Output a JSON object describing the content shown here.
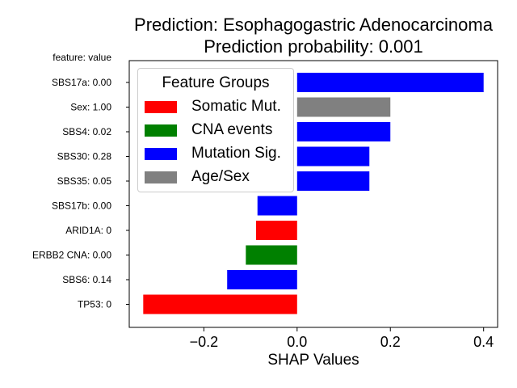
{
  "chart_data": {
    "type": "bar",
    "orientation": "horizontal",
    "title": "Prediction: Esophagogastric Adenocarcinoma",
    "subtitle": "Prediction probability: 0.001",
    "feature_header": "feature: value",
    "xlabel": "SHAP Values",
    "ylabel": "",
    "xlim": [
      -0.36,
      0.43
    ],
    "xticks": [
      -0.2,
      0.0,
      0.2,
      0.4
    ],
    "xtick_labels": [
      "−0.2",
      "0.0",
      "0.2",
      "0.4"
    ],
    "grid": false,
    "legend_placement": "upper-left",
    "categories": [
      "SBS17a: 0.00",
      "Sex: 1.00",
      "SBS4: 0.02",
      "SBS30: 0.28",
      "SBS35: 0.05",
      "SBS17b: 0.00",
      "ARID1A: 0",
      "ERBB2 CNA: 0.00",
      "SBS6: 0.14",
      "TP53: 0"
    ],
    "values": [
      0.4,
      0.2,
      0.2,
      0.155,
      0.155,
      -0.085,
      -0.088,
      -0.11,
      -0.15,
      -0.33
    ],
    "groups": [
      "Mutation Sig.",
      "Age/Sex",
      "Mutation Sig.",
      "Mutation Sig.",
      "Mutation Sig.",
      "Mutation Sig.",
      "Somatic Mut.",
      "CNA events",
      "Mutation Sig.",
      "Somatic Mut."
    ],
    "legend": {
      "title": "Feature Groups",
      "entries": [
        {
          "name": "Somatic Mut.",
          "color": "#ff0000"
        },
        {
          "name": "CNA events",
          "color": "#008000"
        },
        {
          "name": "Mutation Sig.",
          "color": "#0000ff"
        },
        {
          "name": "Age/Sex",
          "color": "#808080"
        }
      ]
    }
  }
}
